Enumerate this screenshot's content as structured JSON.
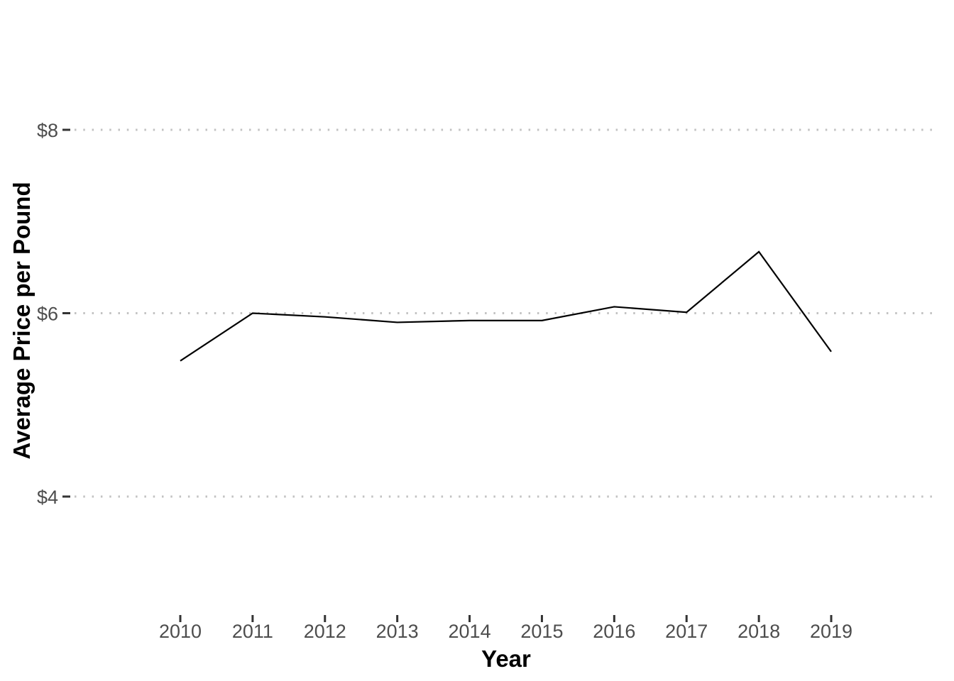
{
  "chart_data": {
    "type": "line",
    "title": "",
    "xlabel": "Year",
    "ylabel": "Average Price per Pound",
    "x": [
      2010,
      2011,
      2012,
      2013,
      2014,
      2015,
      2016,
      2017,
      2018,
      2019
    ],
    "values": [
      5.48,
      6.0,
      5.96,
      5.9,
      5.92,
      5.92,
      6.07,
      6.01,
      6.67,
      5.58
    ],
    "x_tick_labels": [
      "2010",
      "2011",
      "2012",
      "2013",
      "2014",
      "2015",
      "2016",
      "2017",
      "2018",
      "2019"
    ],
    "y_ticks": [
      {
        "value": 4,
        "label": "$4"
      },
      {
        "value": 6,
        "label": "$6"
      },
      {
        "value": 8,
        "label": "$8"
      }
    ],
    "ylim": [
      2.7,
      9.3
    ],
    "xlim": [
      2009.5,
      2019.5
    ],
    "grid": {
      "horizontal": "dotted",
      "vertical": "none"
    },
    "legend": "none",
    "colors": {
      "line": "#000000",
      "gridline": "#C2C2C2",
      "tick_mark": "#333333",
      "tick_label": "#4D4D4D",
      "axis_title": "#000000",
      "background": "#FFFFFF"
    }
  }
}
